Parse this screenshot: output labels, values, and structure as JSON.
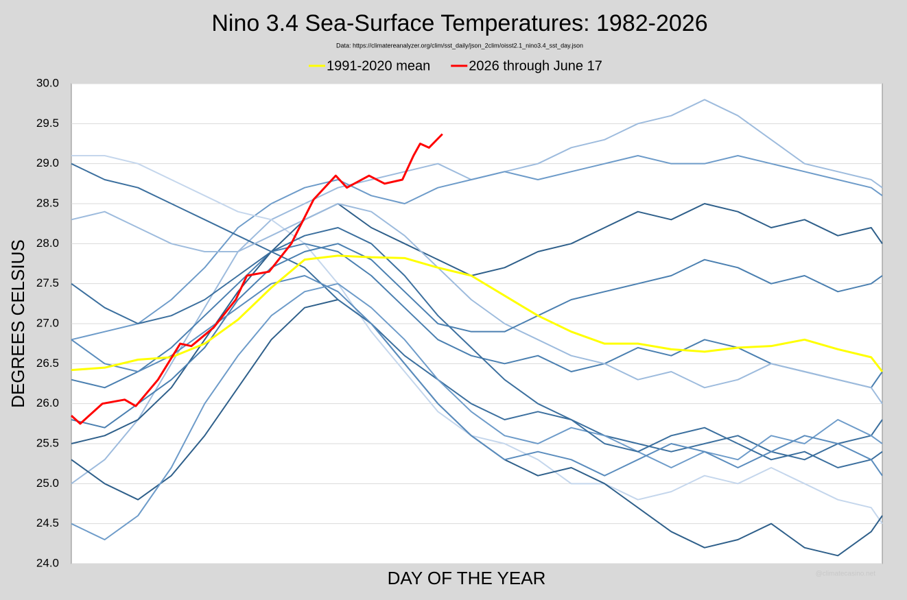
{
  "chart_data": {
    "type": "line",
    "title": "Nino 3.4 Sea-Surface Temperatures: 1982-2026",
    "subtitle": "Data: https://climatereanalyzer.org/clim/sst_daily/json_2clim/oisst2.1_nino3.4_sst_day.json",
    "x_label": "DAY OF THE YEAR",
    "y_label": "DEGREES CELSIUS",
    "watermark": "@climatecasino.net",
    "xlim": [
      1,
      366
    ],
    "ylim": [
      24,
      30
    ],
    "yticks": [
      {
        "value": 24,
        "label": "24.0"
      },
      24.5,
      {
        "value": 25,
        "label": "25.0"
      },
      25.5,
      {
        "value": 26,
        "label": "26.0"
      },
      26.5,
      {
        "value": 27,
        "label": "27.0"
      },
      27.5,
      {
        "value": 28,
        "label": "28.0"
      },
      28.5,
      {
        "value": 29,
        "label": "29.0"
      },
      29.5,
      {
        "value": 30,
        "label": "30.0"
      }
    ],
    "grid": true,
    "legend": "top",
    "x": [
      1,
      16,
      31,
      46,
      61,
      76,
      91,
      106,
      121,
      136,
      151,
      166,
      181,
      196,
      211,
      226,
      241,
      256,
      271,
      286,
      301,
      316,
      331,
      346,
      361,
      366
    ],
    "series": [
      {
        "color": "#9dbbdd",
        "values": [
          25.0,
          25.3,
          25.8,
          26.5,
          27.2,
          27.9,
          28.3,
          28.5,
          28.7,
          28.8,
          28.9,
          29.0,
          28.8,
          28.9,
          29.0,
          29.2,
          29.3,
          29.5,
          29.6,
          29.8,
          29.6,
          29.3,
          29.0,
          28.9,
          28.8,
          28.7
        ]
      },
      {
        "color": "#6d9bc9",
        "values": [
          26.8,
          26.9,
          27.0,
          27.3,
          27.7,
          28.2,
          28.5,
          28.7,
          28.8,
          28.6,
          28.5,
          28.7,
          28.8,
          28.9,
          28.8,
          28.9,
          29.0,
          29.1,
          29.0,
          29.0,
          29.1,
          29.0,
          28.9,
          28.8,
          28.7,
          28.6
        ]
      },
      {
        "color": "#c4d6ec",
        "values": [
          29.1,
          29.1,
          29.0,
          28.8,
          28.6,
          28.4,
          28.3,
          28.0,
          27.5,
          26.9,
          26.4,
          25.9,
          25.6,
          25.5,
          25.3,
          25.0,
          25.0,
          24.8,
          24.9,
          25.1,
          25.0,
          25.2,
          25.0,
          24.8,
          24.7,
          24.5
        ]
      },
      {
        "color": "#2e5f8a",
        "values": [
          25.3,
          25.0,
          24.8,
          25.1,
          25.6,
          26.2,
          26.8,
          27.2,
          27.3,
          27.0,
          26.5,
          26.0,
          25.6,
          25.3,
          25.1,
          25.2,
          25.0,
          24.7,
          24.4,
          24.2,
          24.3,
          24.5,
          24.2,
          24.1,
          24.4,
          24.6
        ]
      },
      {
        "color": "#3b6f9e",
        "values": [
          29.0,
          28.8,
          28.7,
          28.5,
          28.3,
          28.1,
          27.9,
          27.7,
          27.3,
          27.0,
          26.6,
          26.3,
          26.0,
          25.8,
          25.9,
          25.8,
          25.6,
          25.5,
          25.4,
          25.5,
          25.6,
          25.4,
          25.3,
          25.5,
          25.6,
          25.8
        ]
      },
      {
        "color": "#4a7fb0",
        "values": [
          26.3,
          26.2,
          26.4,
          26.7,
          27.1,
          27.5,
          27.9,
          28.0,
          27.9,
          27.6,
          27.2,
          26.8,
          26.6,
          26.5,
          26.6,
          26.4,
          26.5,
          26.7,
          26.6,
          26.8,
          26.7,
          26.5,
          26.4,
          26.3,
          26.2,
          26.4
        ]
      },
      {
        "color": "#2e5f8a",
        "values": [
          25.5,
          25.6,
          25.8,
          26.2,
          26.8,
          27.4,
          27.9,
          28.3,
          28.5,
          28.2,
          28.0,
          27.8,
          27.6,
          27.7,
          27.9,
          28.0,
          28.2,
          28.4,
          28.3,
          28.5,
          28.4,
          28.2,
          28.3,
          28.1,
          28.2,
          28.0
        ]
      },
      {
        "color": "#6d9bc9",
        "values": [
          24.5,
          24.3,
          24.6,
          25.2,
          26.0,
          26.6,
          27.1,
          27.4,
          27.5,
          27.2,
          26.8,
          26.3,
          25.9,
          25.6,
          25.5,
          25.7,
          25.6,
          25.4,
          25.2,
          25.4,
          25.3,
          25.6,
          25.5,
          25.8,
          25.6,
          25.5
        ]
      },
      {
        "color": "#3b6f9e",
        "values": [
          27.5,
          27.2,
          27.0,
          27.1,
          27.3,
          27.6,
          27.9,
          28.1,
          28.2,
          28.0,
          27.6,
          27.1,
          26.7,
          26.3,
          26.0,
          25.8,
          25.5,
          25.4,
          25.6,
          25.7,
          25.5,
          25.3,
          25.4,
          25.2,
          25.3,
          25.4
        ]
      },
      {
        "color": "#9dbbdd",
        "values": [
          28.3,
          28.4,
          28.2,
          28.0,
          27.9,
          27.9,
          28.1,
          28.3,
          28.5,
          28.4,
          28.1,
          27.7,
          27.3,
          27.0,
          26.8,
          26.6,
          26.5,
          26.3,
          26.4,
          26.2,
          26.3,
          26.5,
          26.4,
          26.3,
          26.2,
          26.0
        ]
      },
      {
        "color": "#4a7fb0",
        "values": [
          25.8,
          25.7,
          26.0,
          26.3,
          26.7,
          27.3,
          27.7,
          27.9,
          28.0,
          27.8,
          27.4,
          27.0,
          26.9,
          26.9,
          27.1,
          27.3,
          27.4,
          27.5,
          27.6,
          27.8,
          27.7,
          27.5,
          27.6,
          27.4,
          27.5,
          27.6
        ]
      },
      {
        "color": "#5a8cbd",
        "values": [
          26.8,
          26.5,
          26.4,
          26.6,
          26.9,
          27.2,
          27.5,
          27.6,
          27.4,
          27.0,
          26.5,
          26.0,
          25.6,
          25.3,
          25.4,
          25.3,
          25.1,
          25.3,
          25.5,
          25.4,
          25.2,
          25.4,
          25.6,
          25.5,
          25.3,
          25.1
        ]
      },
      {
        "name": "1991-2020 mean",
        "color": "#ffff00",
        "values": [
          26.42,
          26.45,
          26.55,
          26.58,
          26.75,
          27.05,
          27.45,
          27.8,
          27.85,
          27.83,
          27.82,
          27.7,
          27.6,
          27.35,
          27.1,
          26.9,
          26.75,
          26.75,
          26.68,
          26.65,
          26.7,
          26.72,
          26.8,
          26.68,
          26.58,
          26.4
        ]
      },
      {
        "name": "2026 through June 17",
        "color": "#ff0000",
        "x": [
          1,
          5,
          15,
          25,
          30,
          40,
          50,
          55,
          65,
          75,
          80,
          90,
          100,
          110,
          120,
          125,
          135,
          142,
          150,
          155,
          158,
          162,
          168
        ],
        "values": [
          25.85,
          25.75,
          26.0,
          26.05,
          25.97,
          26.3,
          26.75,
          26.72,
          26.95,
          27.3,
          27.6,
          27.65,
          28.0,
          28.55,
          28.85,
          28.7,
          28.85,
          28.75,
          28.8,
          29.1,
          29.25,
          29.2,
          29.37
        ]
      }
    ]
  }
}
